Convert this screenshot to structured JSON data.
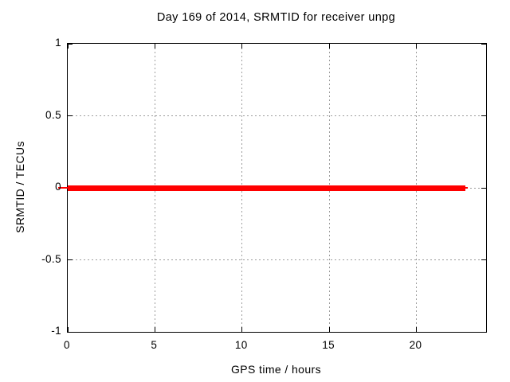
{
  "colors": {
    "background": "#ffffff",
    "plot_border": "#000000",
    "grid": "#9c9c9c",
    "text": "#000000",
    "series_red": "#ff0000"
  },
  "chart_data": {
    "type": "line",
    "title": "Day 169 of 2014, SRMTID for receiver unpg",
    "xlabel": "GPS time / hours",
    "ylabel": "SRMTID / TECUs",
    "xlim": [
      0,
      24
    ],
    "ylim": [
      -1,
      1
    ],
    "xticks": [
      0,
      5,
      10,
      15,
      20
    ],
    "xtick_labels": [
      "0",
      "5",
      "10",
      "15",
      "20"
    ],
    "yticks": [
      1,
      0.5,
      0,
      -0.5,
      -1
    ],
    "ytick_labels": [
      "1",
      "0.5",
      "0",
      "-0.5",
      "-1"
    ],
    "grid": "on-dashed",
    "legend_position": "none",
    "series": [
      {
        "name": "SRMTID",
        "color": "#ff0000",
        "style": "thick-horizontal-line",
        "x": [
          0,
          22.8
        ],
        "y": [
          0,
          0
        ]
      }
    ]
  }
}
